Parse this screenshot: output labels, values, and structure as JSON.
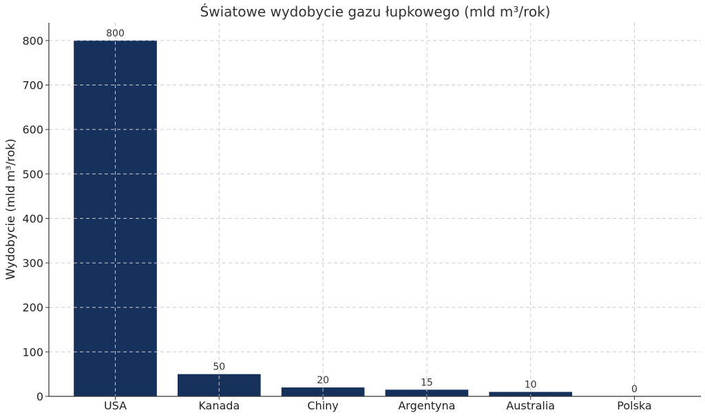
{
  "chart_data": {
    "type": "bar",
    "title": "Światowe wydobycie gazu łupkowego (mld m³/rok)",
    "xlabel": "",
    "ylabel": "Wydobycie (mld m³/rok)",
    "categories": [
      "USA",
      "Kanada",
      "Chiny",
      "Argentyna",
      "Australia",
      "Polska"
    ],
    "values": [
      800,
      50,
      20,
      15,
      10,
      0
    ],
    "ylim": [
      0,
      840
    ],
    "yticks": [
      0,
      100,
      200,
      300,
      400,
      500,
      600,
      700,
      800
    ],
    "grid": true,
    "bar_color": "#16325c",
    "data_labels": true
  }
}
